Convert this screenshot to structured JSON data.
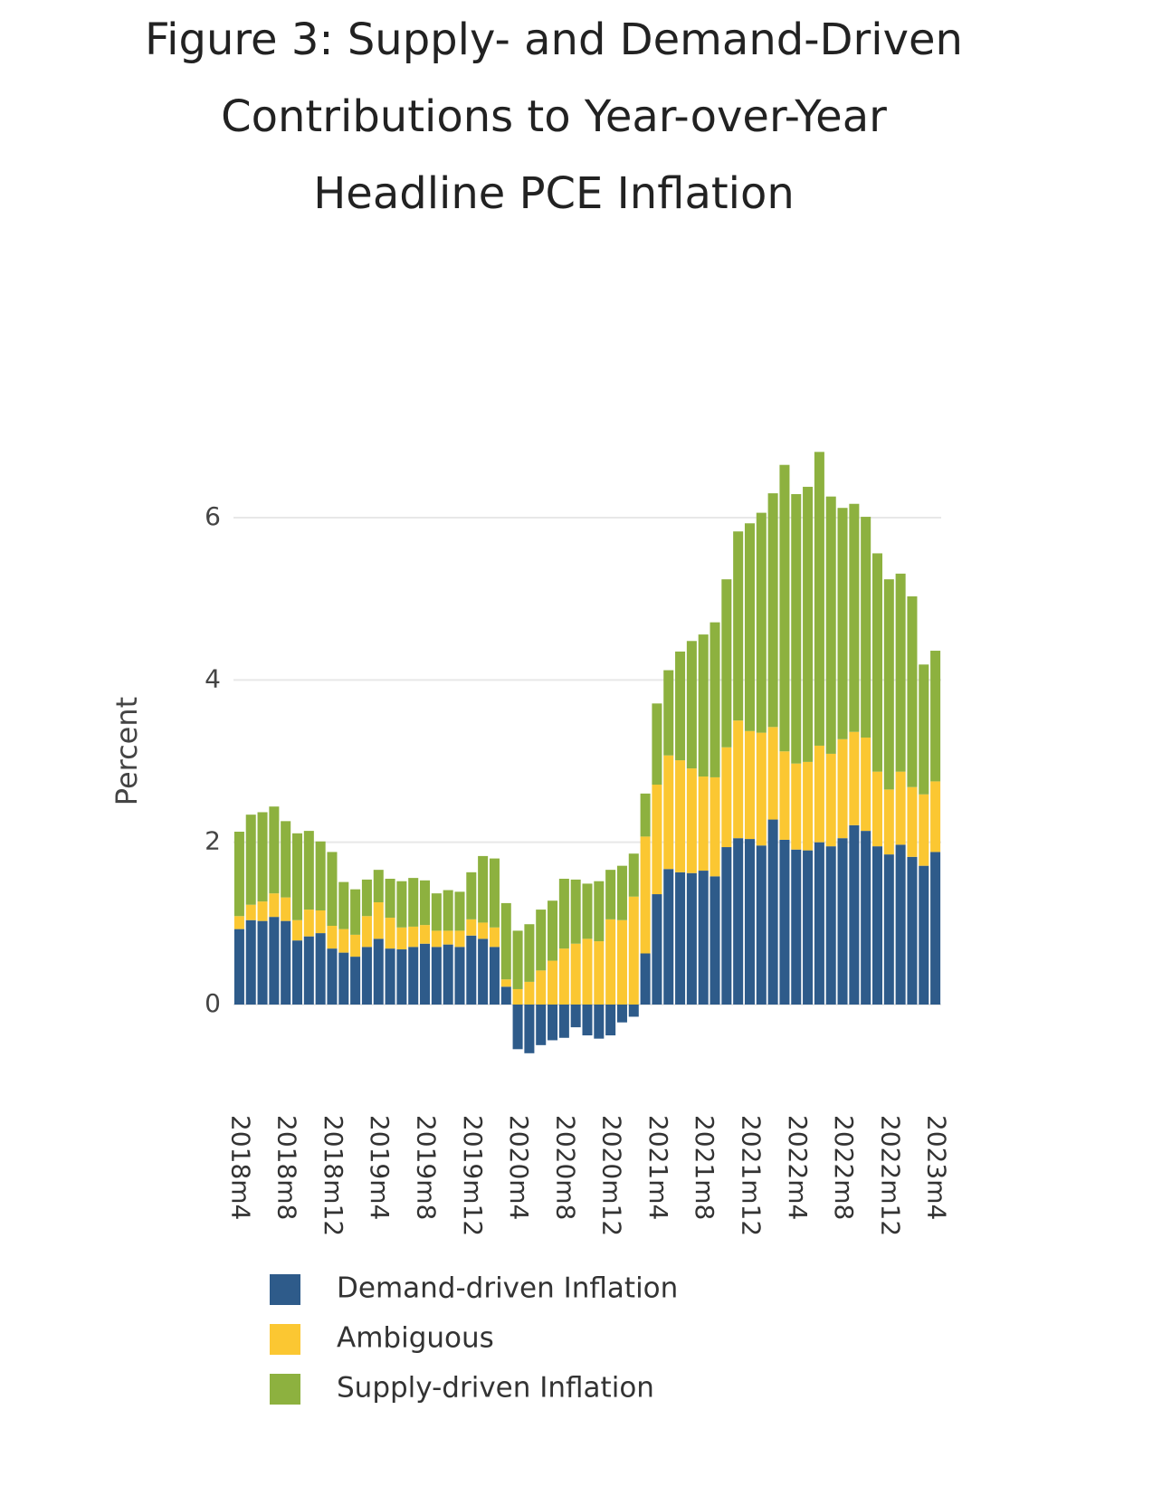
{
  "chart_data": {
    "type": "stacked_bar",
    "title": [
      "Figure 3: Supply- and Demand-Driven",
      "Contributions to Year-over-Year",
      "Headline PCE Inflation"
    ],
    "y_label": "Percent",
    "categories": [
      "2018m4",
      null,
      null,
      null,
      "2018m8",
      null,
      null,
      null,
      "2018m12",
      null,
      null,
      null,
      "2019m4",
      null,
      null,
      null,
      "2019m8",
      null,
      null,
      null,
      "2019m12",
      null,
      null,
      null,
      "2020m4",
      null,
      null,
      null,
      "2020m8",
      null,
      null,
      null,
      "2020m12",
      null,
      null,
      null,
      "2021m4",
      null,
      null,
      null,
      "2021m8",
      null,
      null,
      null,
      "2021m12",
      null,
      null,
      null,
      "2022m4",
      null,
      null,
      null,
      "2022m8",
      null,
      null,
      null,
      "2022m12",
      null,
      null,
      null,
      "2023m4"
    ],
    "series": [
      {
        "name": "Demand-driven Inflation",
        "color": "#2e5b8a",
        "values": [
          0.93,
          1.04,
          1.03,
          1.08,
          1.03,
          0.79,
          0.84,
          0.88,
          0.69,
          0.64,
          0.59,
          0.71,
          0.81,
          0.69,
          0.68,
          0.71,
          0.75,
          0.71,
          0.74,
          0.71,
          0.85,
          0.81,
          0.71,
          0.22,
          -0.55,
          -0.6,
          -0.5,
          -0.44,
          -0.41,
          -0.28,
          -0.38,
          -0.42,
          -0.38,
          -0.22,
          -0.15,
          0.63,
          1.36,
          1.67,
          1.63,
          1.62,
          1.65,
          1.58,
          1.94,
          2.05,
          2.04,
          1.96,
          2.28,
          2.03,
          1.91,
          1.9,
          2.0,
          1.95,
          2.05,
          2.21,
          2.14,
          1.95,
          1.85,
          1.97,
          1.82,
          1.71,
          1.88
        ]
      },
      {
        "name": "Ambiguous",
        "color": "#fbc732",
        "values": [
          0.16,
          0.19,
          0.24,
          0.29,
          0.29,
          0.25,
          0.33,
          0.28,
          0.28,
          0.29,
          0.27,
          0.38,
          0.45,
          0.38,
          0.27,
          0.25,
          0.23,
          0.2,
          0.17,
          0.2,
          0.2,
          0.2,
          0.24,
          0.09,
          0.19,
          0.28,
          0.42,
          0.54,
          0.69,
          0.75,
          0.81,
          0.78,
          1.05,
          1.04,
          1.33,
          1.44,
          1.35,
          1.4,
          1.38,
          1.29,
          1.16,
          1.22,
          1.23,
          1.45,
          1.33,
          1.39,
          1.14,
          1.09,
          1.06,
          1.09,
          1.19,
          1.14,
          1.22,
          1.15,
          1.15,
          0.92,
          0.8,
          0.9,
          0.86,
          0.88,
          0.87
        ]
      },
      {
        "name": "Supply-driven Inflation",
        "color": "#8db13f",
        "values": [
          1.04,
          1.11,
          1.1,
          1.07,
          0.94,
          1.07,
          0.97,
          0.85,
          0.91,
          0.58,
          0.56,
          0.45,
          0.4,
          0.48,
          0.57,
          0.6,
          0.55,
          0.46,
          0.5,
          0.48,
          0.58,
          0.82,
          0.85,
          0.94,
          0.72,
          0.71,
          0.75,
          0.74,
          0.86,
          0.79,
          0.68,
          0.74,
          0.61,
          0.67,
          0.53,
          0.53,
          1.0,
          1.05,
          1.34,
          1.57,
          1.75,
          1.91,
          2.07,
          2.33,
          2.56,
          2.71,
          2.88,
          3.53,
          3.32,
          3.39,
          3.62,
          3.17,
          2.85,
          2.81,
          2.72,
          2.69,
          2.59,
          2.44,
          2.35,
          1.6,
          1.61
        ]
      }
    ],
    "ylim": [
      -1.1,
      7.1
    ],
    "yticks": [
      0,
      2,
      4,
      6
    ],
    "grid": true
  }
}
